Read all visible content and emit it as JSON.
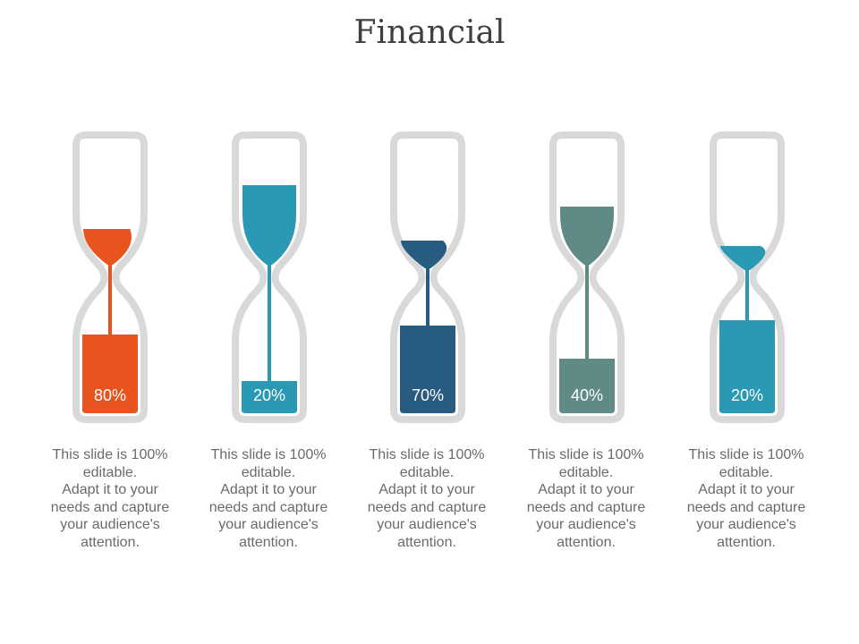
{
  "title": "Financial",
  "items": [
    {
      "percent_label": "80%",
      "color": "#e8541e",
      "caption_line1": "This slide is 100%",
      "caption_line2": "editable.",
      "caption_line3": "Adapt it to your",
      "caption_line4": "needs and capture",
      "caption_line5": "your audience's",
      "caption_line6": "attention."
    },
    {
      "percent_label": "20%",
      "color": "#2a99b3",
      "caption_line1": "This slide is 100%",
      "caption_line2": "editable.",
      "caption_line3": "Adapt it to your",
      "caption_line4": "needs and capture",
      "caption_line5": "your audience's",
      "caption_line6": "attention."
    },
    {
      "percent_label": "70%",
      "color": "#275b7f",
      "caption_line1": "This slide is 100%",
      "caption_line2": "editable.",
      "caption_line3": "Adapt it to your",
      "caption_line4": "needs and capture",
      "caption_line5": "your audience's",
      "caption_line6": "attention."
    },
    {
      "percent_label": "40%",
      "color": "#5f8a86",
      "caption_line1": "This slide is 100%",
      "caption_line2": "editable.",
      "caption_line3": "Adapt it to your",
      "caption_line4": "needs and capture",
      "caption_line5": "your audience's",
      "caption_line6": "attention."
    },
    {
      "percent_label": "20%",
      "color": "#2a99b3",
      "caption_line1": "This slide is 100%",
      "caption_line2": "editable.",
      "caption_line3": "Adapt it to your",
      "caption_line4": "needs and capture",
      "caption_line5": "your audience's",
      "caption_line6": "attention."
    }
  ]
}
